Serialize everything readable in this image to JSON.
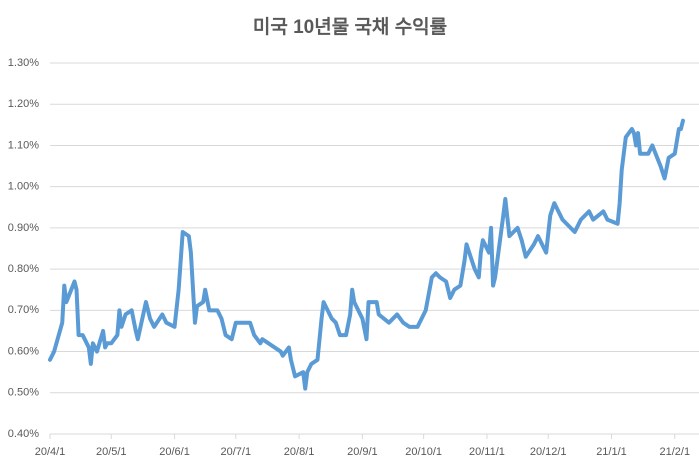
{
  "chart_data": {
    "type": "line",
    "title": "미국 10년물 국채 수익률",
    "color": "#5b9bd5",
    "grid": true,
    "x": [
      "2020-04-01",
      "2020-04-03",
      "2020-04-07",
      "2020-04-08",
      "2020-04-09",
      "2020-04-13",
      "2020-04-14",
      "2020-04-15",
      "2020-04-17",
      "2020-04-20",
      "2020-04-21",
      "2020-04-22",
      "2020-04-24",
      "2020-04-27",
      "2020-04-28",
      "2020-04-29",
      "2020-05-01",
      "2020-05-04",
      "2020-05-05",
      "2020-05-06",
      "2020-05-08",
      "2020-05-11",
      "2020-05-13",
      "2020-05-14",
      "2020-05-18",
      "2020-05-20",
      "2020-05-22",
      "2020-05-26",
      "2020-05-28",
      "2020-06-01",
      "2020-06-03",
      "2020-06-04",
      "2020-06-05",
      "2020-06-08",
      "2020-06-09",
      "2020-06-11",
      "2020-06-12",
      "2020-06-15",
      "2020-06-16",
      "2020-06-18",
      "2020-06-22",
      "2020-06-24",
      "2020-06-26",
      "2020-06-29",
      "2020-07-01",
      "2020-07-06",
      "2020-07-08",
      "2020-07-10",
      "2020-07-13",
      "2020-07-14",
      "2020-07-17",
      "2020-07-20",
      "2020-07-23",
      "2020-07-24",
      "2020-07-27",
      "2020-07-28",
      "2020-07-30",
      "2020-08-03",
      "2020-08-04",
      "2020-08-05",
      "2020-08-07",
      "2020-08-10",
      "2020-08-12",
      "2020-08-13",
      "2020-08-17",
      "2020-08-19",
      "2020-08-21",
      "2020-08-24",
      "2020-08-26",
      "2020-08-27",
      "2020-08-28",
      "2020-09-01",
      "2020-09-03",
      "2020-09-04",
      "2020-09-08",
      "2020-09-09",
      "2020-09-14",
      "2020-09-18",
      "2020-09-21",
      "2020-09-24",
      "2020-09-28",
      "2020-09-30",
      "2020-10-02",
      "2020-10-05",
      "2020-10-07",
      "2020-10-09",
      "2020-10-12",
      "2020-10-14",
      "2020-10-16",
      "2020-10-19",
      "2020-10-21",
      "2020-10-22",
      "2020-10-26",
      "2020-10-28",
      "2020-10-29",
      "2020-10-30",
      "2020-11-02",
      "2020-11-03",
      "2020-11-04",
      "2020-11-05",
      "2020-11-09",
      "2020-11-10",
      "2020-11-12",
      "2020-11-16",
      "2020-11-18",
      "2020-11-20",
      "2020-11-24",
      "2020-11-26",
      "2020-11-30",
      "2020-12-02",
      "2020-12-04",
      "2020-12-08",
      "2020-12-10",
      "2020-12-14",
      "2020-12-17",
      "2020-12-21",
      "2020-12-23",
      "2020-12-28",
      "2020-12-30",
      "2021-01-04",
      "2021-01-05",
      "2021-01-06",
      "2021-01-07",
      "2021-01-08",
      "2021-01-11",
      "2021-01-12",
      "2021-01-13",
      "2021-01-14",
      "2021-01-15",
      "2021-01-19",
      "2021-01-21",
      "2021-01-25",
      "2021-01-27",
      "2021-01-29",
      "2021-02-01",
      "2021-02-03",
      "2021-02-04",
      "2021-02-05"
    ],
    "values": [
      0.58,
      0.6,
      0.67,
      0.76,
      0.72,
      0.77,
      0.75,
      0.64,
      0.64,
      0.61,
      0.57,
      0.62,
      0.6,
      0.65,
      0.61,
      0.62,
      0.62,
      0.64,
      0.7,
      0.66,
      0.69,
      0.7,
      0.65,
      0.63,
      0.72,
      0.68,
      0.66,
      0.69,
      0.67,
      0.66,
      0.75,
      0.82,
      0.89,
      0.88,
      0.84,
      0.67,
      0.71,
      0.72,
      0.75,
      0.7,
      0.7,
      0.68,
      0.64,
      0.63,
      0.67,
      0.67,
      0.67,
      0.64,
      0.62,
      0.63,
      0.62,
      0.61,
      0.6,
      0.59,
      0.61,
      0.58,
      0.54,
      0.55,
      0.51,
      0.55,
      0.57,
      0.58,
      0.68,
      0.72,
      0.68,
      0.67,
      0.64,
      0.64,
      0.69,
      0.75,
      0.72,
      0.68,
      0.63,
      0.72,
      0.72,
      0.69,
      0.67,
      0.69,
      0.67,
      0.66,
      0.66,
      0.68,
      0.7,
      0.78,
      0.79,
      0.78,
      0.77,
      0.73,
      0.75,
      0.76,
      0.82,
      0.86,
      0.8,
      0.78,
      0.84,
      0.87,
      0.84,
      0.9,
      0.76,
      0.78,
      0.93,
      0.97,
      0.88,
      0.9,
      0.87,
      0.83,
      0.86,
      0.88,
      0.84,
      0.93,
      0.96,
      0.92,
      0.91,
      0.89,
      0.92,
      0.94,
      0.92,
      0.94,
      0.92,
      0.91,
      0.96,
      1.04,
      1.08,
      1.12,
      1.14,
      1.13,
      1.1,
      1.13,
      1.08,
      1.08,
      1.1,
      1.05,
      1.02,
      1.07,
      1.08,
      1.14,
      1.14,
      1.16
    ],
    "xlim": [
      "2020-04-01",
      "2021-02-06"
    ],
    "xticks": [
      {
        "value": "2020-04-01",
        "label": "20/4/1"
      },
      {
        "value": "2020-05-01",
        "label": "20/5/1"
      },
      {
        "value": "2020-06-01",
        "label": "20/6/1"
      },
      {
        "value": "2020-07-01",
        "label": "20/7/1"
      },
      {
        "value": "2020-08-01",
        "label": "20/8/1"
      },
      {
        "value": "2020-09-01",
        "label": "20/9/1"
      },
      {
        "value": "2020-10-01",
        "label": "20/10/1"
      },
      {
        "value": "2020-11-01",
        "label": "20/11/1"
      },
      {
        "value": "2020-12-01",
        "label": "20/12/1"
      },
      {
        "value": "2021-01-01",
        "label": "21/1/1"
      },
      {
        "value": "2021-02-01",
        "label": "21/2/1"
      }
    ],
    "ylim": [
      0.4,
      1.3
    ],
    "yticks": [
      {
        "value": 0.4,
        "label": "0.40%"
      },
      {
        "value": 0.5,
        "label": "0.50%"
      },
      {
        "value": 0.6,
        "label": "0.60%"
      },
      {
        "value": 0.7,
        "label": "0.70%"
      },
      {
        "value": 0.8,
        "label": "0.80%"
      },
      {
        "value": 0.9,
        "label": "0.90%"
      },
      {
        "value": 1.0,
        "label": "1.00%"
      },
      {
        "value": 1.1,
        "label": "1.10%"
      },
      {
        "value": 1.2,
        "label": "1.20%"
      },
      {
        "value": 1.3,
        "label": "1.30%"
      }
    ]
  }
}
